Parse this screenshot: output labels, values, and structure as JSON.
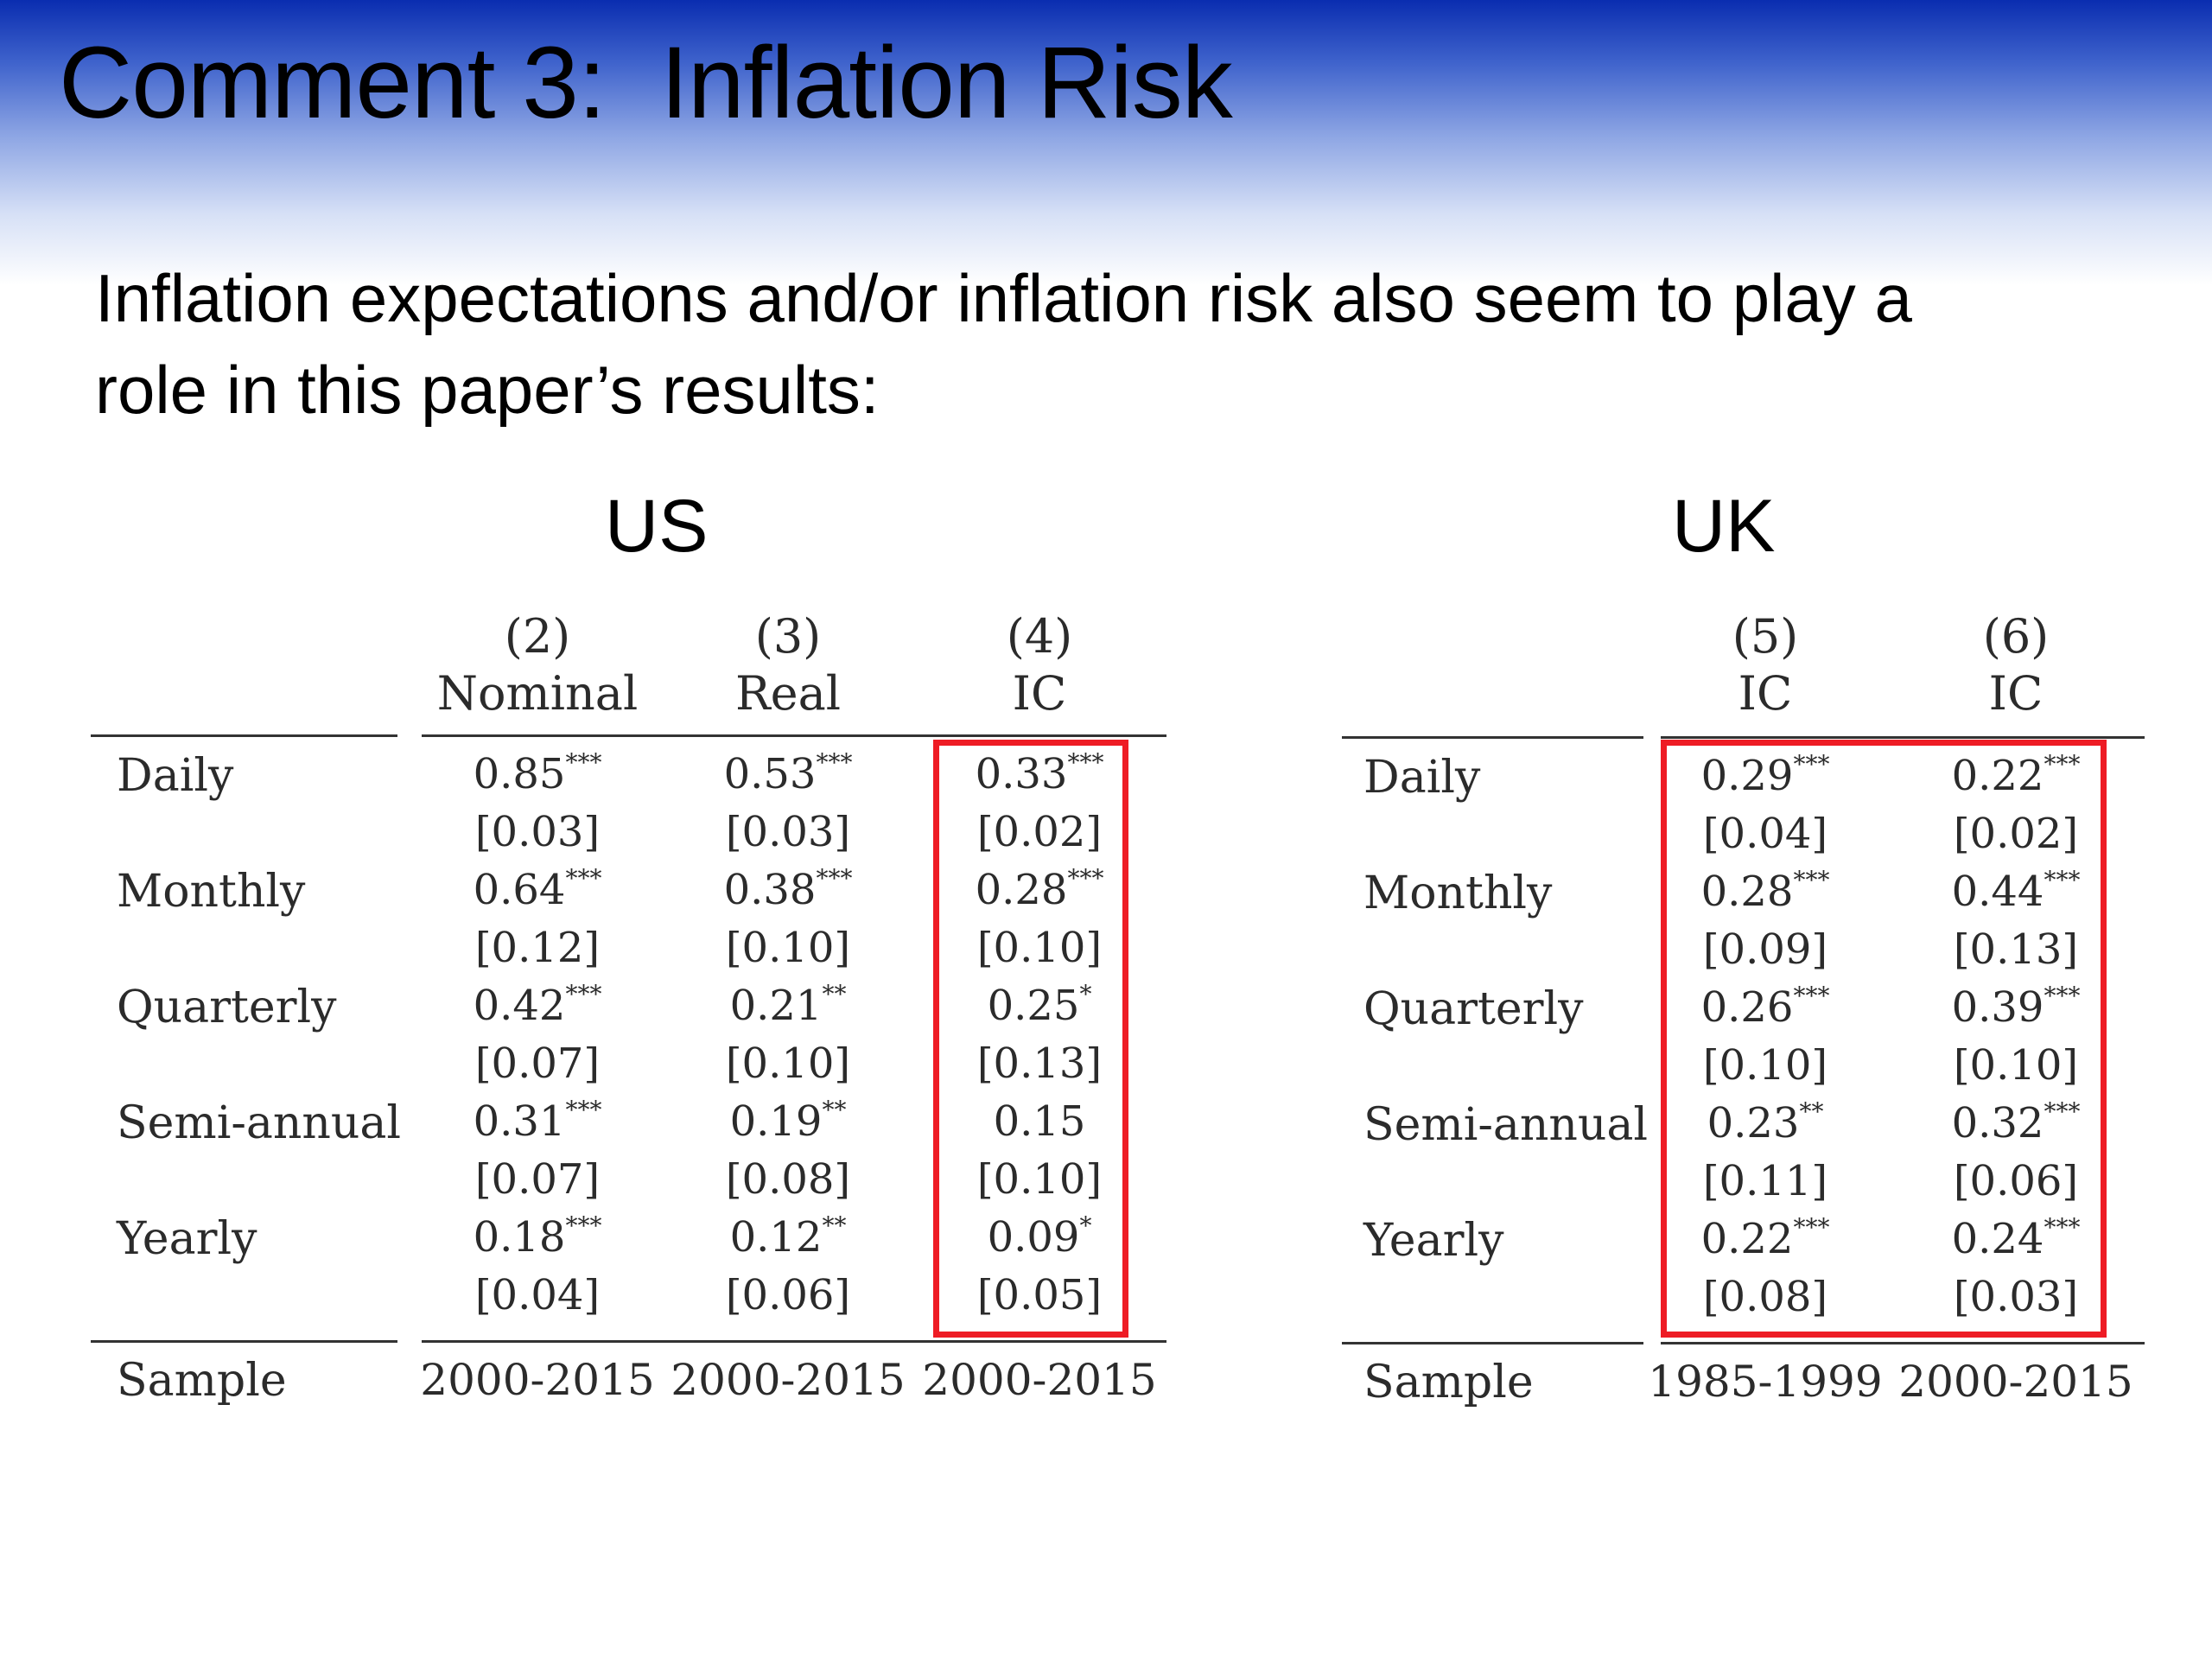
{
  "slide": {
    "title": "Comment 3:  Inflation Risk",
    "intro_line1": "Inflation expectations and/or inflation risk also seem to play a",
    "intro_line2": "role in this paper’s results:",
    "highlight_color": "#ee1c25",
    "header_band_color": "#0a2db0"
  },
  "us_table": {
    "region": "US",
    "columns": [
      {
        "num": "(2)",
        "name": "Nominal"
      },
      {
        "num": "(3)",
        "name": "Real"
      },
      {
        "num": "(4)",
        "name": "IC"
      }
    ],
    "rows": [
      {
        "label": "Daily",
        "cells": [
          {
            "v": "0.85",
            "s": "***",
            "se": "[0.03]"
          },
          {
            "v": "0.53",
            "s": "***",
            "se": "[0.03]"
          },
          {
            "v": "0.33",
            "s": "***",
            "se": "[0.02]"
          }
        ]
      },
      {
        "label": "Monthly",
        "cells": [
          {
            "v": "0.64",
            "s": "***",
            "se": "[0.12]"
          },
          {
            "v": "0.38",
            "s": "***",
            "se": "[0.10]"
          },
          {
            "v": "0.28",
            "s": "***",
            "se": "[0.10]"
          }
        ]
      },
      {
        "label": "Quarterly",
        "cells": [
          {
            "v": "0.42",
            "s": "***",
            "se": "[0.07]"
          },
          {
            "v": "0.21",
            "s": "**",
            "se": "[0.10]"
          },
          {
            "v": "0.25",
            "s": "*",
            "se": "[0.13]"
          }
        ]
      },
      {
        "label": "Semi-annual",
        "cells": [
          {
            "v": "0.31",
            "s": "***",
            "se": "[0.07]"
          },
          {
            "v": "0.19",
            "s": "**",
            "se": "[0.08]"
          },
          {
            "v": "0.15",
            "s": "",
            "se": "[0.10]"
          }
        ]
      },
      {
        "label": "Yearly",
        "cells": [
          {
            "v": "0.18",
            "s": "***",
            "se": "[0.04]"
          },
          {
            "v": "0.12",
            "s": "**",
            "se": "[0.06]"
          },
          {
            "v": "0.09",
            "s": "*",
            "se": "[0.05]"
          }
        ]
      }
    ],
    "sample_label": "Sample",
    "samples": [
      "2000-2015",
      "2000-2015",
      "2000-2015"
    ]
  },
  "uk_table": {
    "region": "UK",
    "columns": [
      {
        "num": "(5)",
        "name": "IC"
      },
      {
        "num": "(6)",
        "name": "IC"
      }
    ],
    "rows": [
      {
        "label": "Daily",
        "cells": [
          {
            "v": "0.29",
            "s": "***",
            "se": "[0.04]"
          },
          {
            "v": "0.22",
            "s": "***",
            "se": "[0.02]"
          }
        ]
      },
      {
        "label": "Monthly",
        "cells": [
          {
            "v": "0.28",
            "s": "***",
            "se": "[0.09]"
          },
          {
            "v": "0.44",
            "s": "***",
            "se": "[0.13]"
          }
        ]
      },
      {
        "label": "Quarterly",
        "cells": [
          {
            "v": "0.26",
            "s": "***",
            "se": "[0.10]"
          },
          {
            "v": "0.39",
            "s": "***",
            "se": "[0.10]"
          }
        ]
      },
      {
        "label": "Semi-annual",
        "cells": [
          {
            "v": "0.23",
            "s": "**",
            "se": "[0.11]"
          },
          {
            "v": "0.32",
            "s": "***",
            "se": "[0.06]"
          }
        ]
      },
      {
        "label": "Yearly",
        "cells": [
          {
            "v": "0.22",
            "s": "***",
            "se": "[0.08]"
          },
          {
            "v": "0.24",
            "s": "***",
            "se": "[0.03]"
          }
        ]
      }
    ],
    "sample_label": "Sample",
    "samples": [
      "1985-1999",
      "2000-2015"
    ]
  }
}
